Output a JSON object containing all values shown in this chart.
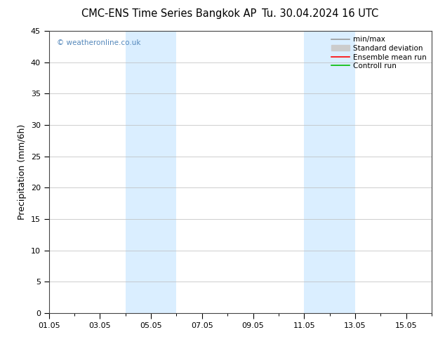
{
  "title_left": "CMC-ENS Time Series Bangkok AP",
  "title_right": "Tu. 30.04.2024 16 UTC",
  "ylabel": "Precipitation (mm/6h)",
  "ylim": [
    0,
    45
  ],
  "yticks": [
    0,
    5,
    10,
    15,
    20,
    25,
    30,
    35,
    40,
    45
  ],
  "xlim": [
    0,
    15
  ],
  "xtick_labels": [
    "01.05",
    "03.05",
    "05.05",
    "07.05",
    "09.05",
    "11.05",
    "13.05",
    "15.05"
  ],
  "xtick_positions": [
    0,
    2,
    4,
    6,
    8,
    10,
    12,
    14
  ],
  "shaded_bands": [
    {
      "xstart": 3.0,
      "xend": 5.0
    },
    {
      "xstart": 10.0,
      "xend": 12.0
    }
  ],
  "shade_color": "#daeeff",
  "background_color": "#ffffff",
  "grid_color": "#bbbbbb",
  "legend_items": [
    {
      "label": "min/max",
      "color": "#999999",
      "lw": 1.2
    },
    {
      "label": "Standard deviation",
      "color": "#cccccc",
      "lw": 5
    },
    {
      "label": "Ensemble mean run",
      "color": "#ff0000",
      "lw": 1.2
    },
    {
      "label": "Controll run",
      "color": "#00bb00",
      "lw": 1.2
    }
  ],
  "watermark": "© weatheronline.co.uk",
  "watermark_color": "#5588bb",
  "title_fontsize": 10.5,
  "tick_fontsize": 8,
  "ylabel_fontsize": 9,
  "legend_fontsize": 7.5
}
